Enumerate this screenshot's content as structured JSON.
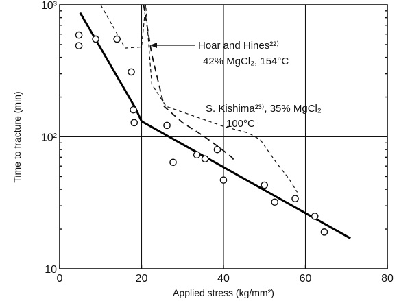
{
  "chart_data": {
    "type": "scatter",
    "xlabel": "Applied stress (kg/mm²)",
    "ylabel": "Time to fracture (min)",
    "xlim": [
      0,
      80
    ],
    "ylim": [
      10,
      1000
    ],
    "y_scale": "log",
    "x_ticks": [
      0,
      20,
      40,
      60,
      80
    ],
    "x_tick_labels": [
      "0",
      "20",
      "40",
      "60",
      "80"
    ],
    "y_ticks": [
      10,
      100,
      1000
    ],
    "y_tick_labels": [
      "10",
      "10²",
      "10³"
    ],
    "grid": "vertical lines at 20, 40, 60; horizontal line at 10²",
    "series": [
      {
        "style": "open-circles",
        "x": [
          4.7,
          4.7,
          8.8,
          14.0,
          17.5,
          18.0,
          18.2,
          26.2,
          27.7,
          33.5,
          35.5,
          38.5,
          40.0,
          50.0,
          52.5,
          57.5,
          62.3,
          64.6
        ],
        "y": [
          590,
          490,
          550,
          550,
          310,
          160,
          128,
          122,
          64,
          73,
          68,
          80,
          47,
          43,
          32,
          34,
          25,
          19
        ]
      },
      {
        "style": "solid-line",
        "x": [
          5,
          18.5,
          20,
          71
        ],
        "y": [
          870,
          165,
          131,
          17
        ]
      },
      {
        "style": "dashed-line",
        "name": "Hoar and Hines²²⁾ 42% MgCl₂, 154°C",
        "x": [
          20.5,
          22.5,
          25.5,
          30,
          35,
          39,
          42,
          43
        ],
        "y": [
          1000,
          420,
          170,
          128,
          102,
          83,
          70,
          64
        ]
      },
      {
        "style": "fine-dashed-line",
        "name": "S. Kishima²³⁾ 35% MgCl₂ 100°C",
        "x": [
          10,
          16,
          20,
          21,
          22.5,
          26,
          40,
          46,
          49,
          53,
          56,
          58
        ],
        "y": [
          1000,
          470,
          480,
          1000,
          250,
          170,
          120,
          107,
          95,
          63,
          48,
          38
        ]
      }
    ],
    "annotations": [
      {
        "lines": [
          "Hoar and Hines²²⁾",
          "42% MgCl₂, 154°C"
        ]
      },
      {
        "lines": [
          "S. Kishima²³⁾, 35% MgCl₂",
          "100°C"
        ]
      }
    ]
  }
}
